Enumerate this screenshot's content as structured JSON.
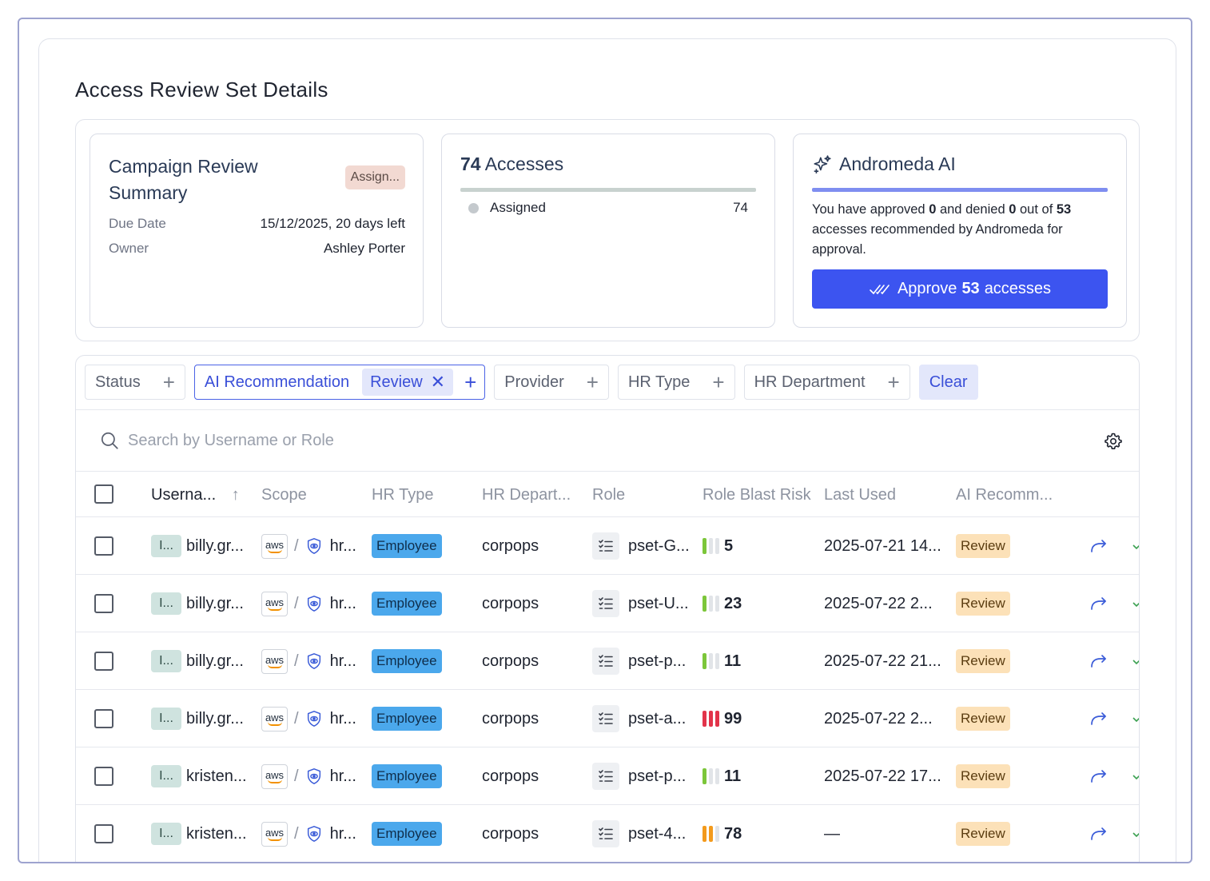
{
  "page": {
    "title": "Access Review Set Details"
  },
  "summary_card": {
    "title": "Campaign Review Summary",
    "status_badge": "Assign...",
    "due_date_label": "Due Date",
    "due_date_value": "15/12/2025, 20 days left",
    "owner_label": "Owner",
    "owner_value": "Ashley Porter"
  },
  "accesses_card": {
    "count": "74",
    "label": "Accesses",
    "legend": [
      {
        "label": "Assigned",
        "value": "74",
        "color": "#c4c9cd"
      }
    ],
    "bar_color": "#c8d2cf"
  },
  "ai_card": {
    "title": "Andromeda AI",
    "text_1": "You have approved ",
    "approved": "0",
    "text_2": " and denied ",
    "denied": "0",
    "text_3": " out of ",
    "recommended": "53",
    "text_4": " accesses recommended by Andromeda for approval.",
    "button_prefix": "Approve",
    "button_count": "53",
    "button_suffix": "accesses",
    "accent": "#3c54f0"
  },
  "filters": {
    "status": "Status",
    "ai_recommendation": "AI Recommendation",
    "ai_recommendation_value": "Review",
    "provider": "Provider",
    "hr_type": "HR Type",
    "hr_department": "HR Department",
    "clear": "Clear"
  },
  "search": {
    "placeholder": "Search by Username or Role"
  },
  "table": {
    "columns": {
      "username": "Userna...",
      "scope": "Scope",
      "hr_type": "HR Type",
      "hr_department": "HR Depart...",
      "role": "Role",
      "role_blast_risk": "Role Blast Risk",
      "last_used": "Last Used",
      "ai_recommendation": "AI Recomm..."
    },
    "rows": [
      {
        "avatar": "I...",
        "username": "billy.gr...",
        "provider": "aws",
        "scope": "hr...",
        "hr_type": "Employee",
        "department": "corpops",
        "role": "pset-G...",
        "risk_level": 1,
        "risk": "5",
        "last_used": "2025-07-21 14...",
        "ai": "Review"
      },
      {
        "avatar": "I...",
        "username": "billy.gr...",
        "provider": "aws",
        "scope": "hr...",
        "hr_type": "Employee",
        "department": "corpops",
        "role": "pset-U...",
        "risk_level": 1,
        "risk": "23",
        "last_used": "2025-07-22 2...",
        "ai": "Review"
      },
      {
        "avatar": "I...",
        "username": "billy.gr...",
        "provider": "aws",
        "scope": "hr...",
        "hr_type": "Employee",
        "department": "corpops",
        "role": "pset-p...",
        "risk_level": 1,
        "risk": "11",
        "last_used": "2025-07-22 21...",
        "ai": "Review"
      },
      {
        "avatar": "I...",
        "username": "billy.gr...",
        "provider": "aws",
        "scope": "hr...",
        "hr_type": "Employee",
        "department": "corpops",
        "role": "pset-a...",
        "risk_level": 3,
        "risk": "99",
        "last_used": "2025-07-22 2...",
        "ai": "Review"
      },
      {
        "avatar": "I...",
        "username": "kristen...",
        "provider": "aws",
        "scope": "hr...",
        "hr_type": "Employee",
        "department": "corpops",
        "role": "pset-p...",
        "risk_level": 1,
        "risk": "11",
        "last_used": "2025-07-22 17...",
        "ai": "Review"
      },
      {
        "avatar": "I...",
        "username": "kristen...",
        "provider": "aws",
        "scope": "hr...",
        "hr_type": "Employee",
        "department": "corpops",
        "role": "pset-4...",
        "risk_level": 2,
        "risk": "78",
        "last_used": "—",
        "ai": "Review"
      }
    ]
  },
  "colors": {
    "risk_low": "#7cc63a",
    "risk_medium": "#f39a1c",
    "risk_high": "#e2344a",
    "risk_empty": "#e1e4e8"
  }
}
